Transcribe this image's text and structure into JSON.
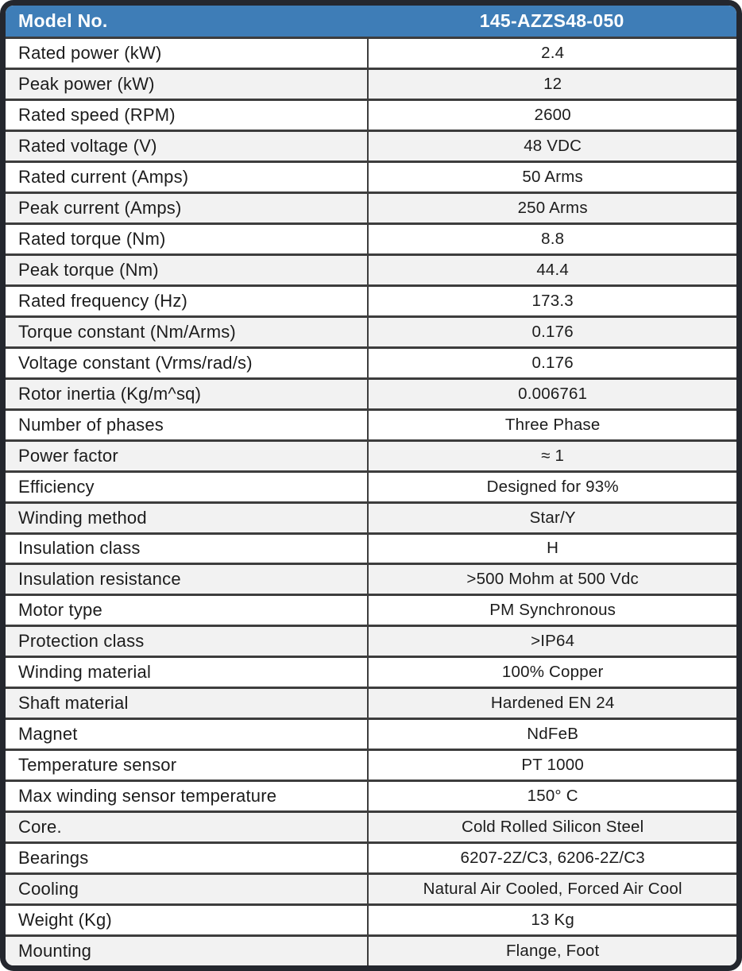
{
  "colors": {
    "header_bg": "#3e7db7",
    "header_text": "#ffffff",
    "border": "#24272e",
    "grid_line": "#3d3d3d",
    "row_alt": "#f2f2f2",
    "text": "#1c1c1c"
  },
  "table": {
    "header": {
      "label": "Model No.",
      "value": "145-AZZS48-050"
    },
    "rows": [
      {
        "label": "Rated power (kW)",
        "value": "2.4",
        "shaded": false
      },
      {
        "label": "Peak power (kW)",
        "value": "12",
        "shaded": true
      },
      {
        "label": "Rated speed (RPM)",
        "value": "2600",
        "shaded": false
      },
      {
        "label": "Rated voltage (V)",
        "value": "48 VDC",
        "shaded": true
      },
      {
        "label": "Rated current (Amps)",
        "value": "50 Arms",
        "shaded": false
      },
      {
        "label": "Peak current (Amps)",
        "value": "250 Arms",
        "shaded": true
      },
      {
        "label": "Rated torque (Nm)",
        "value": "8.8",
        "shaded": false
      },
      {
        "label": "Peak torque (Nm)",
        "value": "44.4",
        "shaded": true
      },
      {
        "label": "Rated frequency (Hz)",
        "value": "173.3",
        "shaded": false
      },
      {
        "label": "Torque constant (Nm/Arms)",
        "value": "0.176",
        "shaded": true
      },
      {
        "label": "Voltage constant (Vrms/rad/s)",
        "value": "0.176",
        "shaded": false
      },
      {
        "label": "Rotor inertia (Kg/m^sq)",
        "value": "0.006761",
        "shaded": true
      },
      {
        "label": "Number of phases",
        "value": "Three Phase",
        "shaded": false
      },
      {
        "label": "Power factor",
        "value": "≈ 1",
        "shaded": true
      },
      {
        "label": "Efficiency",
        "value": "Designed for 93%",
        "shaded": false
      },
      {
        "label": "Winding method",
        "value": "Star/Y",
        "shaded": true
      },
      {
        "label": "Insulation class",
        "value": "H",
        "shaded": false
      },
      {
        "label": "Insulation resistance",
        "value": ">500 Mohm at 500 Vdc",
        "shaded": true
      },
      {
        "label": "Motor type",
        "value": "PM Synchronous",
        "shaded": false
      },
      {
        "label": "Protection class",
        "value": ">IP64",
        "shaded": true
      },
      {
        "label": "Winding material",
        "value": "100% Copper",
        "shaded": false
      },
      {
        "label": "Shaft material",
        "value": "Hardened EN 24",
        "shaded": true
      },
      {
        "label": "Magnet",
        "value": "NdFeB",
        "shaded": false
      },
      {
        "label": "Temperature sensor",
        "value": "PT 1000",
        "shaded": false
      },
      {
        "label": "Max winding sensor temperature",
        "value": "150° C",
        "shaded": false
      },
      {
        "label": "Core.",
        "value": "Cold Rolled Silicon Steel",
        "shaded": true
      },
      {
        "label": "Bearings",
        "value": "6207-2Z/C3, 6206-2Z/C3",
        "shaded": false
      },
      {
        "label": "Cooling",
        "value": "Natural Air Cooled, Forced Air Cool",
        "shaded": true
      },
      {
        "label": "Weight (Kg)",
        "value": "13 Kg",
        "shaded": false
      },
      {
        "label": "Mounting",
        "value": "Flange, Foot",
        "shaded": true
      }
    ]
  }
}
